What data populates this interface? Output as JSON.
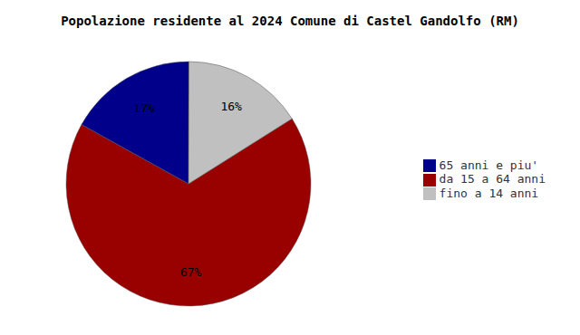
{
  "chart_data": {
    "type": "pie",
    "title": "Popolazione residente al 2024 Comune di Castel Gandolfo (RM)",
    "categories": [
      "da 15 a 64 anni",
      "65 anni e piu'",
      "fino a 14 anni"
    ],
    "values": [
      67,
      17,
      16
    ],
    "value_labels": [
      "67%",
      "17%",
      "16%"
    ],
    "colors": [
      "#990000",
      "#00008B",
      "#C0C0C0"
    ],
    "data_labels": true
  }
}
